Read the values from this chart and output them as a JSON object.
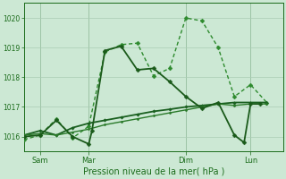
{
  "background_color": "#cce8d4",
  "grid_color": "#aaccb4",
  "text_color": "#1a6b1a",
  "xlabel": "Pression niveau de la mer( hPa )",
  "yticks": [
    1016,
    1017,
    1018,
    1019,
    1020
  ],
  "ylim": [
    1015.5,
    1020.5
  ],
  "xlim": [
    0,
    8.0
  ],
  "xtick_positions": [
    0.5,
    2.0,
    5.0,
    7.0
  ],
  "xtick_labels": [
    "Sam",
    "Mar",
    "Dim",
    "Lun"
  ],
  "vlines": [
    0.5,
    2.0,
    5.0,
    7.0
  ],
  "series": [
    {
      "x": [
        0.0,
        0.5,
        1.0,
        1.5,
        2.0,
        2.5,
        3.0,
        3.5,
        4.0,
        4.5,
        5.0,
        5.5,
        6.0,
        6.5,
        7.0,
        7.5
      ],
      "y": [
        1015.9,
        1016.05,
        1016.6,
        1015.95,
        1016.35,
        1018.85,
        1019.1,
        1019.15,
        1018.05,
        1018.3,
        1020.0,
        1019.9,
        1019.0,
        1017.35,
        1017.75,
        1017.15
      ],
      "style": "dashed",
      "marker": "D",
      "markersize": 2.5,
      "linewidth": 1.0,
      "color": "#2d8a2d"
    },
    {
      "x": [
        0.0,
        0.5,
        1.0,
        1.5,
        2.0,
        2.5,
        3.0,
        3.5,
        4.0,
        4.5,
        5.0,
        5.5,
        6.0,
        6.5,
        7.0,
        7.5
      ],
      "y": [
        1016.05,
        1016.2,
        1016.05,
        1016.3,
        1016.45,
        1016.55,
        1016.65,
        1016.75,
        1016.85,
        1016.92,
        1017.0,
        1017.05,
        1017.1,
        1017.15,
        1017.15,
        1017.15
      ],
      "style": "solid",
      "marker": "D",
      "markersize": 1.8,
      "linewidth": 1.3,
      "color": "#1a6020"
    },
    {
      "x": [
        0.0,
        0.5,
        1.0,
        1.5,
        2.0,
        2.5,
        3.0,
        3.5,
        4.0,
        4.5,
        5.0,
        5.5,
        6.0,
        6.5,
        7.0,
        7.5
      ],
      "y": [
        1016.05,
        1016.1,
        1016.05,
        1016.15,
        1016.25,
        1016.4,
        1016.5,
        1016.6,
        1016.7,
        1016.8,
        1016.9,
        1017.0,
        1017.1,
        1017.05,
        1017.1,
        1017.1
      ],
      "style": "solid",
      "marker": "D",
      "markersize": 1.5,
      "linewidth": 1.0,
      "color": "#2a7a2a"
    },
    {
      "x": [
        0.0,
        0.5,
        1.0,
        1.5,
        2.0,
        2.1,
        2.5,
        3.0,
        3.5,
        4.0,
        4.5,
        5.0,
        5.5,
        6.0,
        6.5,
        6.8,
        7.0,
        7.3
      ],
      "y": [
        1016.0,
        1016.05,
        1016.55,
        1016.0,
        1015.75,
        1016.2,
        1018.9,
        1019.05,
        1018.25,
        1018.3,
        1017.85,
        1017.35,
        1016.95,
        1017.15,
        1016.05,
        1015.8,
        1017.1,
        1017.1
      ],
      "style": "solid",
      "marker": "D",
      "markersize": 2.5,
      "linewidth": 1.3,
      "color": "#1a5a1a"
    }
  ]
}
